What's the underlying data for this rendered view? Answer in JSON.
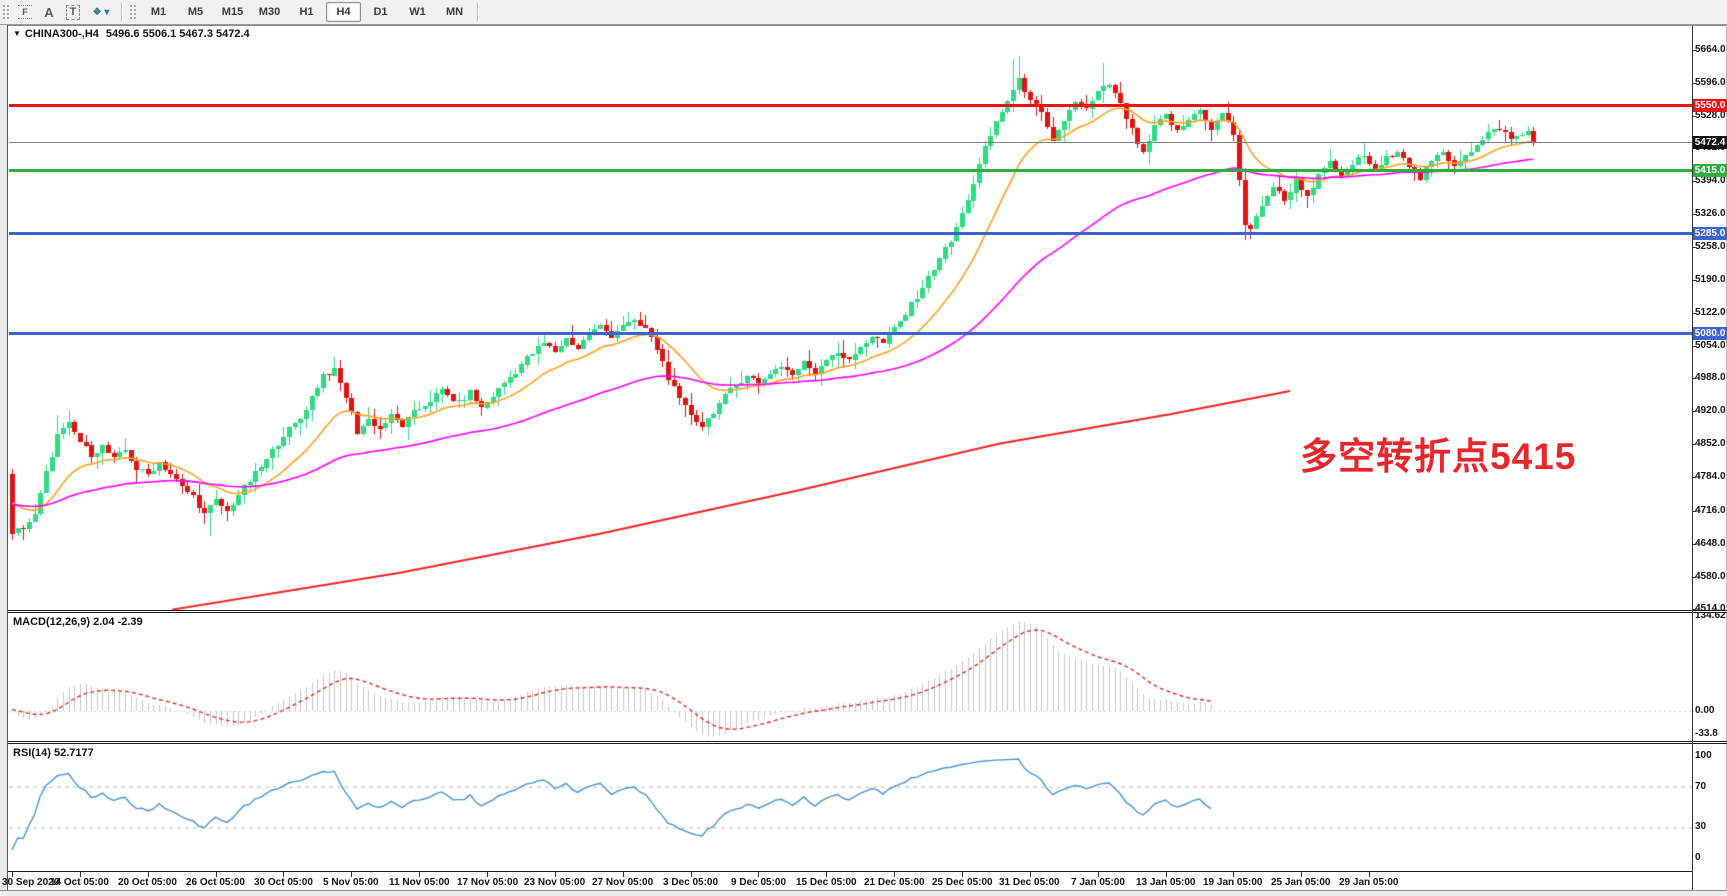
{
  "toolbar": {
    "icons": [
      {
        "name": "grid-template-icon",
        "glyph": "F"
      },
      {
        "name": "text-label-icon",
        "glyph": "A"
      },
      {
        "name": "text-box-icon",
        "glyph": "T"
      },
      {
        "name": "objects-dropdown-icon",
        "glyph": "❖ ▾"
      }
    ],
    "timeframes": [
      "M1",
      "M5",
      "M15",
      "M30",
      "H1",
      "H4",
      "D1",
      "W1",
      "MN"
    ],
    "active_timeframe": "H4"
  },
  "chart": {
    "title": {
      "dropdown_glyph": "▼",
      "symbol": "CHINA300-,H4",
      "ohlc": "5496.6 5506.1 5467.3 5472.4"
    },
    "annotation": {
      "text": "多空转折点5415",
      "color": "#e8262d"
    },
    "y_axis_labels": [
      "5664.0",
      "5596.0",
      "5528.0",
      "5462.0",
      "5394.0",
      "5326.0",
      "5258.0",
      "5190.0",
      "5122.0",
      "5054.0",
      "4988.0",
      "4920.0",
      "4852.0",
      "4784.0",
      "4716.0",
      "4648.0",
      "4580.0",
      "4514.0"
    ],
    "x_axis_labels": [
      "30 Sep 2020",
      "14 Oct 05:00",
      "20 Oct 05:00",
      "26 Oct 05:00",
      "30 Oct 05:00",
      "5 Nov 05:00",
      "11 Nov 05:00",
      "17 Nov 05:00",
      "23 Nov 05:00",
      "27 Nov 05:00",
      "3 Dec 05:00",
      "9 Dec 05:00",
      "15 Dec 05:00",
      "21 Dec 05:00",
      "25 Dec 05:00",
      "31 Dec 05:00",
      "7 Jan 05:00",
      "13 Jan 05:00",
      "19 Jan 05:00",
      "25 Jan 05:00",
      "29 Jan 05:00"
    ],
    "hlines": [
      {
        "price": 5550.0,
        "label": "5550.0",
        "color": "#ee1111",
        "thickness": 3
      },
      {
        "price": 5472.4,
        "label": "5472.4",
        "color": "#808080",
        "thickness": 1,
        "badge_bg": "#111111"
      },
      {
        "price": 5415.0,
        "label": "5415.0",
        "color": "#2fae3e",
        "thickness": 3
      },
      {
        "price": 5285.0,
        "label": "5285.0",
        "color": "#3c64d0",
        "thickness": 3
      },
      {
        "price": 5080.0,
        "label": "5080.0",
        "color": "#3c64d0",
        "thickness": 3
      }
    ]
  },
  "indicators": {
    "macd": {
      "label": "MACD(12,26,9)",
      "values": "2.04 -2.39",
      "axis": [
        "134.62",
        "0.00",
        "-33.8"
      ]
    },
    "rsi": {
      "label": "RSI(14)",
      "values": "52.7177",
      "axis": [
        "100",
        "70",
        "30",
        "0"
      ],
      "levels": [
        70,
        30
      ]
    }
  },
  "chart_data": {
    "type": "candlestick",
    "symbol": "CHINA300-,H4",
    "timeframe": "H4",
    "ylim": [
      4514,
      5664
    ],
    "x_range": [
      "30 Sep 2020",
      "29 Jan 05:00"
    ],
    "bar_count": 270,
    "indicator_end_index": 212,
    "last_bar": {
      "open": 5496.6,
      "high": 5506.1,
      "low": 5467.3,
      "close": 5472.4
    },
    "first_bar": {
      "open": 4792,
      "high": 4801,
      "low": 4655,
      "close": 4668
    },
    "colors": {
      "up": "#2fdc83",
      "down": "#e01313",
      "macd_hist": "#c8c8c8",
      "macd_signal": "#e03030",
      "rsi_line": "#4796d8",
      "ma_fast": "#ffa020",
      "ma_medium": "#ff00ff",
      "ma_slow": "#f22222"
    },
    "close_waypoints": [
      [
        0,
        4668
      ],
      [
        2,
        4682
      ],
      [
        4,
        4705
      ],
      [
        6,
        4792
      ],
      [
        8,
        4870
      ],
      [
        10,
        4892
      ],
      [
        12,
        4858
      ],
      [
        14,
        4832
      ],
      [
        16,
        4848
      ],
      [
        18,
        4820
      ],
      [
        20,
        4840
      ],
      [
        22,
        4802
      ],
      [
        24,
        4790
      ],
      [
        26,
        4816
      ],
      [
        28,
        4792
      ],
      [
        30,
        4763
      ],
      [
        32,
        4746
      ],
      [
        34,
        4708
      ],
      [
        36,
        4736
      ],
      [
        38,
        4713
      ],
      [
        40,
        4749
      ],
      [
        42,
        4776
      ],
      [
        45,
        4820
      ],
      [
        48,
        4872
      ],
      [
        51,
        4904
      ],
      [
        53,
        4950
      ],
      [
        55,
        4996
      ],
      [
        57,
        5004
      ],
      [
        59,
        4950
      ],
      [
        61,
        4878
      ],
      [
        63,
        4904
      ],
      [
        65,
        4884
      ],
      [
        67,
        4910
      ],
      [
        69,
        4890
      ],
      [
        71,
        4916
      ],
      [
        73,
        4934
      ],
      [
        76,
        4963
      ],
      [
        79,
        4936
      ],
      [
        81,
        4959
      ],
      [
        83,
        4926
      ],
      [
        85,
        4953
      ],
      [
        88,
        4990
      ],
      [
        91,
        5030
      ],
      [
        94,
        5060
      ],
      [
        96,
        5042
      ],
      [
        98,
        5070
      ],
      [
        100,
        5050
      ],
      [
        102,
        5080
      ],
      [
        104,
        5096
      ],
      [
        106,
        5076
      ],
      [
        108,
        5099
      ],
      [
        110,
        5103
      ],
      [
        112,
        5090
      ],
      [
        114,
        5050
      ],
      [
        116,
        4990
      ],
      [
        118,
        4942
      ],
      [
        120,
        4914
      ],
      [
        122,
        4890
      ],
      [
        124,
        4920
      ],
      [
        126,
        4950
      ],
      [
        128,
        4974
      ],
      [
        130,
        4996
      ],
      [
        132,
        4977
      ],
      [
        134,
        5000
      ],
      [
        136,
        5014
      ],
      [
        138,
        4994
      ],
      [
        140,
        5020
      ],
      [
        142,
        5000
      ],
      [
        144,
        5030
      ],
      [
        146,
        5044
      ],
      [
        148,
        5022
      ],
      [
        150,
        5054
      ],
      [
        152,
        5074
      ],
      [
        154,
        5060
      ],
      [
        156,
        5090
      ],
      [
        158,
        5120
      ],
      [
        160,
        5158
      ],
      [
        162,
        5194
      ],
      [
        164,
        5238
      ],
      [
        166,
        5270
      ],
      [
        168,
        5325
      ],
      [
        170,
        5390
      ],
      [
        172,
        5460
      ],
      [
        174,
        5515
      ],
      [
        176,
        5560
      ],
      [
        178,
        5600
      ],
      [
        180,
        5565
      ],
      [
        182,
        5530
      ],
      [
        184,
        5470
      ],
      [
        186,
        5520
      ],
      [
        188,
        5558
      ],
      [
        190,
        5540
      ],
      [
        192,
        5574
      ],
      [
        194,
        5594
      ],
      [
        196,
        5550
      ],
      [
        198,
        5497
      ],
      [
        200,
        5447
      ],
      [
        202,
        5504
      ],
      [
        204,
        5530
      ],
      [
        206,
        5494
      ],
      [
        208,
        5520
      ],
      [
        210,
        5544
      ],
      [
        212,
        5497
      ],
      [
        214,
        5534
      ],
      [
        216,
        5490
      ],
      [
        218,
        5304
      ],
      [
        219,
        5289
      ],
      [
        221,
        5347
      ],
      [
        223,
        5384
      ],
      [
        225,
        5354
      ],
      [
        227,
        5397
      ],
      [
        229,
        5364
      ],
      [
        231,
        5404
      ],
      [
        233,
        5430
      ],
      [
        235,
        5400
      ],
      [
        237,
        5430
      ],
      [
        239,
        5447
      ],
      [
        241,
        5414
      ],
      [
        243,
        5440
      ],
      [
        245,
        5460
      ],
      [
        247,
        5427
      ],
      [
        249,
        5400
      ],
      [
        251,
        5434
      ],
      [
        253,
        5454
      ],
      [
        255,
        5427
      ],
      [
        257,
        5450
      ],
      [
        259,
        5467
      ],
      [
        261,
        5490
      ],
      [
        263,
        5504
      ],
      [
        265,
        5480
      ],
      [
        267,
        5490
      ],
      [
        268,
        5497
      ],
      [
        269,
        5472.4
      ]
    ],
    "high_boosts": [
      [
        8,
        4912
      ],
      [
        110,
        5112
      ],
      [
        177,
        5644
      ],
      [
        178,
        5652
      ],
      [
        193,
        5636
      ]
    ],
    "low_boosts": [
      [
        0,
        4655
      ],
      [
        35,
        4663
      ],
      [
        122,
        4880
      ],
      [
        218,
        5273
      ]
    ],
    "ma_fast_period": 16,
    "ma_medium_period": 64,
    "ma_slow_waypoints_x_price": [
      [
        172,
        4512
      ],
      [
        400,
        4588
      ],
      [
        600,
        4668
      ],
      [
        800,
        4758
      ],
      [
        1000,
        4854
      ],
      [
        1170,
        4914
      ],
      [
        1290,
        4962
      ]
    ],
    "macd_params": {
      "fast": 12,
      "slow": 26,
      "signal": 9
    },
    "rsi_period": 14
  }
}
